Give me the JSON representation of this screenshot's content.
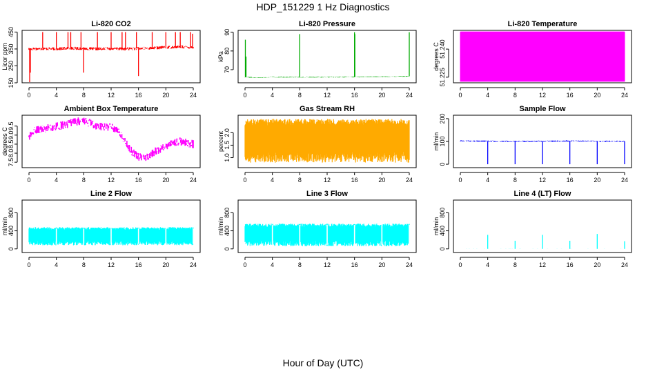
{
  "title": "HDP_151229  1 Hz Diagnostics",
  "xcaption": "Hour of Day (UTC)",
  "chart_data": [
    {
      "type": "line",
      "title": "Li-820 CO2",
      "ylabel": "Licor ppm",
      "color": "#ff0000",
      "xlim": [
        0,
        24
      ],
      "ylim": [
        150,
        460
      ],
      "xticks": [
        0,
        4,
        8,
        12,
        16,
        20,
        24
      ],
      "yticks": [
        150,
        250,
        350,
        450
      ],
      "baseline": [
        [
          0,
          350
        ],
        [
          2,
          352
        ],
        [
          4,
          350
        ],
        [
          6,
          355
        ],
        [
          8,
          352
        ],
        [
          10,
          350
        ],
        [
          12,
          352
        ],
        [
          14,
          350
        ],
        [
          16,
          353
        ],
        [
          18,
          355
        ],
        [
          20,
          360
        ],
        [
          22,
          362
        ],
        [
          24,
          360
        ]
      ],
      "noise": 18,
      "spikes": [
        [
          0.1,
          150
        ],
        [
          0.2,
          210
        ],
        [
          2,
          450
        ],
        [
          4,
          450
        ],
        [
          5.7,
          450
        ],
        [
          6.1,
          450
        ],
        [
          7.6,
          450
        ],
        [
          8,
          210
        ],
        [
          10,
          450
        ],
        [
          12,
          450
        ],
        [
          13.6,
          450
        ],
        [
          14.1,
          450
        ],
        [
          15.7,
          450
        ],
        [
          16,
          190
        ],
        [
          18,
          450
        ],
        [
          20,
          450
        ],
        [
          21.4,
          450
        ],
        [
          22.1,
          450
        ],
        [
          23.6,
          450
        ],
        [
          23.9,
          440
        ]
      ]
    },
    {
      "type": "line",
      "title": "Li-820 Pressure",
      "ylabel": "kPa",
      "color": "#00aa00",
      "xlim": [
        0,
        24
      ],
      "ylim": [
        63,
        91
      ],
      "xticks": [
        0,
        4,
        8,
        12,
        16,
        20,
        24
      ],
      "yticks": [
        70,
        80,
        90
      ],
      "baseline": [
        [
          0,
          66
        ],
        [
          2,
          65.8
        ],
        [
          4,
          66
        ],
        [
          8,
          66
        ],
        [
          12,
          66
        ],
        [
          16,
          66.1
        ],
        [
          20,
          66.2
        ],
        [
          24,
          66.5
        ]
      ],
      "noise": 0.4,
      "spikes": [
        [
          0.05,
          86
        ],
        [
          0.15,
          77
        ],
        [
          8,
          89
        ],
        [
          16,
          90
        ],
        [
          16.05,
          89
        ],
        [
          24,
          90
        ]
      ]
    },
    {
      "type": "line",
      "title": "Li-820 Temperature",
      "ylabel": "degrees C",
      "color": "#ff00ff",
      "xlim": [
        0,
        24
      ],
      "ylim": [
        51.222,
        51.25
      ],
      "xticks": [
        0,
        4,
        8,
        12,
        16,
        20,
        24
      ],
      "yticks": [
        51.225,
        51.24
      ],
      "square": true,
      "hi": 51.2492,
      "lo": 51.2226,
      "dense_ranges": [
        [
          17,
          21
        ]
      ]
    },
    {
      "type": "line",
      "title": "Ambient Box Temperature",
      "ylabel": "degrees C",
      "color": "#ff00ff",
      "xlim": [
        0,
        24
      ],
      "ylim": [
        7.2,
        10.1
      ],
      "xticks": [
        0,
        4,
        8,
        12,
        16,
        20,
        24
      ],
      "yticks": [
        7.5,
        8.0,
        8.5,
        9.0,
        9.5
      ],
      "baseline": [
        [
          0,
          8.9
        ],
        [
          1,
          9.3
        ],
        [
          3,
          9.4
        ],
        [
          5,
          9.55
        ],
        [
          7,
          9.75
        ],
        [
          8,
          9.8
        ],
        [
          10,
          9.5
        ],
        [
          12,
          9.45
        ],
        [
          13,
          9.3
        ],
        [
          14,
          8.7
        ],
        [
          15,
          8.1
        ],
        [
          16,
          7.8
        ],
        [
          17,
          7.7
        ],
        [
          18,
          8.0
        ],
        [
          19,
          8.2
        ],
        [
          20,
          8.4
        ],
        [
          21,
          8.6
        ],
        [
          22,
          8.65
        ],
        [
          24,
          8.5
        ]
      ],
      "noise": 0.45
    },
    {
      "type": "line",
      "title": "Gas Stream RH",
      "ylabel": "percent",
      "color": "#ffaa00",
      "xlim": [
        0,
        24
      ],
      "ylim": [
        0.6,
        2.7
      ],
      "xticks": [
        0,
        4,
        8,
        12,
        16,
        20,
        24
      ],
      "yticks": [
        1.0,
        1.5,
        2.0
      ],
      "band": [
        0.8,
        2.55
      ]
    },
    {
      "type": "line",
      "title": "Sample Flow",
      "ylabel": "ml/min",
      "color": "#0000ff",
      "xlim": [
        0,
        24
      ],
      "ylim": [
        -15,
        215
      ],
      "xticks": [
        0,
        4,
        8,
        12,
        16,
        20,
        24
      ],
      "yticks": [
        0,
        100,
        200
      ],
      "baseline": [
        [
          0,
          102
        ],
        [
          8,
          100
        ],
        [
          16,
          102
        ],
        [
          24,
          100
        ]
      ],
      "noise": 6,
      "spikes": [
        [
          4,
          0
        ],
        [
          8,
          0
        ],
        [
          12,
          0
        ],
        [
          16,
          0
        ],
        [
          20,
          0
        ],
        [
          24,
          0
        ]
      ]
    },
    {
      "type": "line",
      "title": "Line 2 Flow",
      "ylabel": "ml/min",
      "color": "#00ffff",
      "xlim": [
        0,
        24
      ],
      "ylim": [
        -80,
        1080
      ],
      "xticks": [
        0,
        4,
        8,
        12,
        16,
        20,
        24
      ],
      "yticks": [
        0,
        400,
        800
      ],
      "band": [
        80,
        480
      ],
      "gaps": [
        4,
        8,
        12,
        16,
        20,
        24
      ]
    },
    {
      "type": "line",
      "title": "Line 3 Flow",
      "ylabel": "ml/min",
      "color": "#00ffff",
      "xlim": [
        0,
        24
      ],
      "ylim": [
        -80,
        1080
      ],
      "xticks": [
        0,
        4,
        8,
        12,
        16,
        20,
        24
      ],
      "yticks": [
        0,
        400,
        800
      ],
      "band": [
        60,
        560
      ],
      "gaps": [
        4,
        8,
        12,
        16,
        20,
        24
      ]
    },
    {
      "type": "line",
      "title": "Line 4 (LT) Flow",
      "ylabel": "ml/min",
      "color": "#00ffff",
      "xlim": [
        0,
        24
      ],
      "ylim": [
        -80,
        1080
      ],
      "xticks": [
        0,
        4,
        8,
        12,
        16,
        20,
        24
      ],
      "yticks": [
        0,
        400,
        800
      ],
      "baseline": [
        [
          0,
          0
        ],
        [
          24,
          0
        ]
      ],
      "noise": 3,
      "spikes": [
        [
          4,
          310
        ],
        [
          8,
          180
        ],
        [
          12,
          310
        ],
        [
          16,
          180
        ],
        [
          20,
          330
        ],
        [
          24,
          170
        ]
      ]
    }
  ]
}
